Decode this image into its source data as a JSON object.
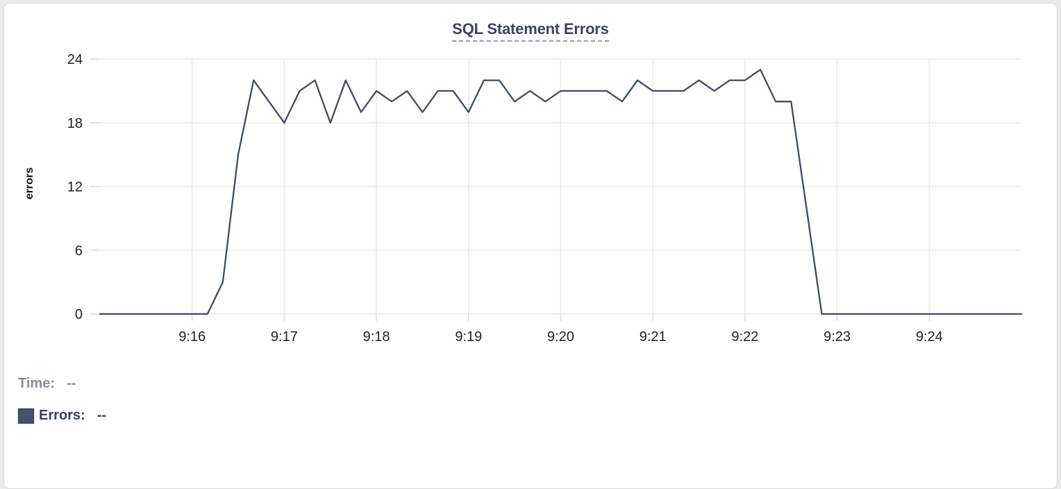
{
  "card": {
    "title": "SQL Statement Errors"
  },
  "chart_data": {
    "type": "line",
    "title": "SQL Statement Errors",
    "xlabel": "",
    "ylabel": "errors",
    "x_domain": [
      "9:15:00",
      "9:25:00"
    ],
    "ylim": [
      0,
      24
    ],
    "y_ticks": [
      0,
      6,
      12,
      18,
      24
    ],
    "x_tick_labels": [
      "9:16",
      "9:17",
      "9:18",
      "9:19",
      "9:20",
      "9:21",
      "9:22",
      "9:23",
      "9:24"
    ],
    "grid": true,
    "legend_position": "bottom-left",
    "series": [
      {
        "name": "Errors",
        "color": "#3e4a66",
        "points": [
          [
            "9:15:00",
            0
          ],
          [
            "9:15:10",
            0
          ],
          [
            "9:15:20",
            0
          ],
          [
            "9:15:30",
            0
          ],
          [
            "9:15:40",
            0
          ],
          [
            "9:15:50",
            0
          ],
          [
            "9:16:00",
            0
          ],
          [
            "9:16:10",
            0
          ],
          [
            "9:16:20",
            3
          ],
          [
            "9:16:30",
            15
          ],
          [
            "9:16:40",
            22
          ],
          [
            "9:16:50",
            20
          ],
          [
            "9:17:00",
            18
          ],
          [
            "9:17:10",
            21
          ],
          [
            "9:17:20",
            22
          ],
          [
            "9:17:30",
            18
          ],
          [
            "9:17:40",
            22
          ],
          [
            "9:17:50",
            19
          ],
          [
            "9:18:00",
            21
          ],
          [
            "9:18:10",
            20
          ],
          [
            "9:18:20",
            21
          ],
          [
            "9:18:30",
            19
          ],
          [
            "9:18:40",
            21
          ],
          [
            "9:18:50",
            21
          ],
          [
            "9:19:00",
            19
          ],
          [
            "9:19:10",
            22
          ],
          [
            "9:19:20",
            22
          ],
          [
            "9:19:30",
            20
          ],
          [
            "9:19:40",
            21
          ],
          [
            "9:19:50",
            20
          ],
          [
            "9:20:00",
            21
          ],
          [
            "9:20:10",
            21
          ],
          [
            "9:20:20",
            21
          ],
          [
            "9:20:30",
            21
          ],
          [
            "9:20:40",
            20
          ],
          [
            "9:20:50",
            22
          ],
          [
            "9:21:00",
            21
          ],
          [
            "9:21:10",
            21
          ],
          [
            "9:21:20",
            21
          ],
          [
            "9:21:30",
            22
          ],
          [
            "9:21:40",
            21
          ],
          [
            "9:21:50",
            22
          ],
          [
            "9:22:00",
            22
          ],
          [
            "9:22:10",
            23
          ],
          [
            "9:22:20",
            20
          ],
          [
            "9:22:30",
            20
          ],
          [
            "9:22:40",
            10
          ],
          [
            "9:22:50",
            0
          ],
          [
            "9:23:00",
            0
          ],
          [
            "9:23:10",
            0
          ],
          [
            "9:23:20",
            0
          ],
          [
            "9:23:30",
            0
          ],
          [
            "9:23:40",
            0
          ],
          [
            "9:23:50",
            0
          ],
          [
            "9:24:00",
            0
          ],
          [
            "9:24:10",
            0
          ],
          [
            "9:24:20",
            0
          ],
          [
            "9:24:30",
            0
          ],
          [
            "9:24:40",
            0
          ],
          [
            "9:24:50",
            0
          ],
          [
            "9:25:00",
            0
          ]
        ]
      }
    ]
  },
  "tooltip": {
    "time_label": "Time:",
    "time_value": "--",
    "errors_label": "Errors:",
    "errors_value": "--",
    "swatch_color": "#44536f"
  },
  "colors": {
    "line": "#3e4a66",
    "title": "#35466b",
    "title_underline": "#8f9cb3",
    "grid": "#e9e9e9",
    "tick_text": "#1f1f1f",
    "time_text": "#868d98",
    "errors_text": "#2f4268",
    "card_border": "#d6d6d6",
    "background": "#ffffff"
  }
}
